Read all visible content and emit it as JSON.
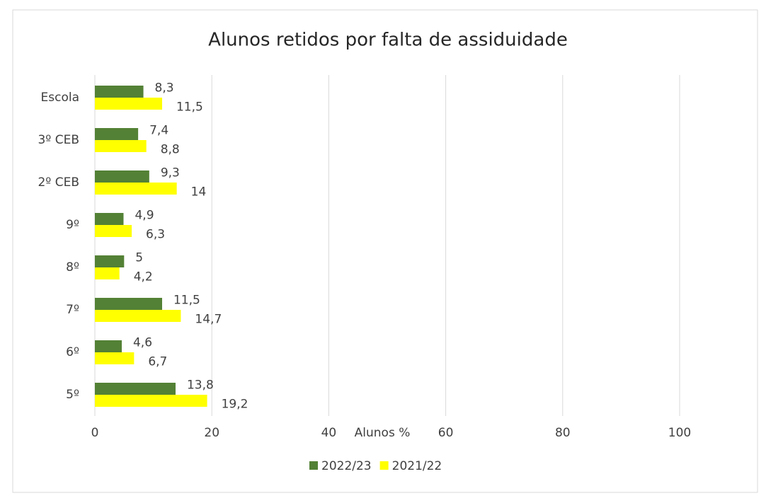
{
  "chart_data": {
    "type": "barh",
    "title": "Alunos retidos por  falta de assiduidade",
    "categories": [
      "Escola",
      "3º CEB",
      "2º CEB",
      "9º",
      "8º",
      "7º",
      "6º",
      "5º"
    ],
    "series": [
      {
        "name": "2022/23",
        "color": "#538135",
        "values": [
          8.3,
          7.4,
          9.3,
          4.9,
          5,
          11.5,
          4.6,
          13.8
        ],
        "value_labels": [
          "8,3",
          "7,4",
          "9,3",
          "4,9",
          "5",
          "11,5",
          "4,6",
          "13,8"
        ]
      },
      {
        "name": "2021/22",
        "color": "#ffff00",
        "values": [
          11.5,
          8.8,
          14,
          6.3,
          4.2,
          14.7,
          6.7,
          19.2
        ],
        "value_labels": [
          "11,5",
          "8,8",
          "14",
          "6,3",
          "4,2",
          "14,7",
          "6,7",
          "19,2"
        ]
      }
    ],
    "xlabel": "Alunos %",
    "xlim": [
      0,
      100
    ],
    "xticks": [
      0,
      20,
      40,
      60,
      80,
      100
    ],
    "grid": true,
    "legend": "bottom"
  }
}
